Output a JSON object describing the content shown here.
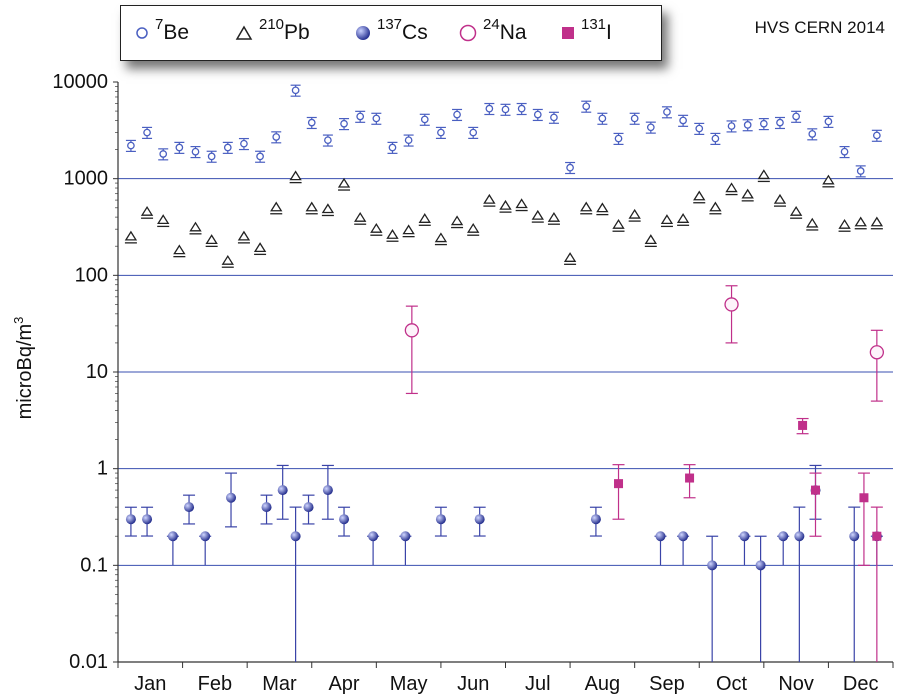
{
  "note": "HVS CERN 2014",
  "colors": {
    "be": "#4a5fc1",
    "pb": "#222222",
    "cs": "#3a44a8",
    "na": "#c0308a",
    "i": "#c0308a",
    "grid": "#3a4fb0"
  },
  "legend": [
    {
      "mass": "7",
      "element": "Be",
      "marker": "circle-open-blue"
    },
    {
      "mass": "210",
      "element": "Pb",
      "marker": "triangle-open"
    },
    {
      "mass": "137",
      "element": "Cs",
      "marker": "sphere-blue"
    },
    {
      "mass": "24",
      "element": "Na",
      "marker": "circle-open-pink"
    },
    {
      "mass": "131",
      "element": "I",
      "marker": "square-pink"
    }
  ],
  "chart_data": {
    "type": "scatter",
    "xlabel": "",
    "ylabel": "microBq/m3",
    "yscale": "log",
    "ylim": [
      0.01,
      10000
    ],
    "yticks": [
      "10000",
      "1000",
      "100",
      "10",
      "1",
      "0.1",
      "0.01"
    ],
    "xlim": [
      0,
      12
    ],
    "categories": [
      "Jan",
      "Feb",
      "Mar",
      "Apr",
      "May",
      "Jun",
      "Jul",
      "Aug",
      "Sep",
      "Oct",
      "Nov",
      "Dec"
    ],
    "grid": "horizontal at decades",
    "series": [
      {
        "name": "7Be",
        "x": [
          0.2,
          0.45,
          0.7,
          0.95,
          1.2,
          1.45,
          1.7,
          1.95,
          2.2,
          2.45,
          2.75,
          3.0,
          3.25,
          3.5,
          3.75,
          4.0,
          4.25,
          4.5,
          4.75,
          5.0,
          5.25,
          5.5,
          5.75,
          6.0,
          6.25,
          6.5,
          6.75,
          7.0,
          7.25,
          7.5,
          7.75,
          8.0,
          8.25,
          8.5,
          8.75,
          9.0,
          9.25,
          9.5,
          9.75,
          10.0,
          10.25,
          10.5,
          10.75,
          11.0,
          11.25,
          11.5,
          11.75
        ],
        "y": [
          2200,
          3000,
          1800,
          2100,
          1900,
          1700,
          2100,
          2300,
          1700,
          2700,
          8200,
          3800,
          2500,
          3700,
          4400,
          4200,
          2100,
          2500,
          4100,
          3000,
          4600,
          3000,
          5300,
          5200,
          5300,
          4600,
          4300,
          1300,
          5600,
          4200,
          2600,
          4200,
          3400,
          4900,
          4000,
          3300,
          2600,
          3500,
          3600,
          3700,
          3800,
          4400,
          2900,
          3900,
          1900,
          1200,
          2800
        ]
      },
      {
        "name": "210Pb",
        "x": [
          0.2,
          0.45,
          0.7,
          0.95,
          1.2,
          1.45,
          1.7,
          1.95,
          2.2,
          2.45,
          2.75,
          3.0,
          3.25,
          3.5,
          3.75,
          4.0,
          4.25,
          4.5,
          4.75,
          5.0,
          5.25,
          5.5,
          5.75,
          6.0,
          6.25,
          6.5,
          6.75,
          7.0,
          7.25,
          7.5,
          7.75,
          8.0,
          8.25,
          8.5,
          8.75,
          9.0,
          9.25,
          9.5,
          9.75,
          10.0,
          10.25,
          10.5,
          10.75,
          11.0,
          11.25,
          11.5,
          11.75
        ],
        "y": [
          250,
          450,
          370,
          180,
          310,
          230,
          140,
          250,
          190,
          500,
          1050,
          500,
          480,
          880,
          390,
          300,
          260,
          290,
          380,
          240,
          360,
          300,
          600,
          520,
          540,
          410,
          390,
          150,
          500,
          490,
          330,
          420,
          230,
          370,
          380,
          650,
          500,
          790,
          680,
          1080,
          600,
          450,
          340,
          950,
          330,
          350,
          350
        ]
      },
      {
        "name": "137Cs",
        "x": [
          0.2,
          0.45,
          0.85,
          1.1,
          1.35,
          1.75,
          2.3,
          2.55,
          2.75,
          2.95,
          3.25,
          3.5,
          3.95,
          4.45,
          5.0,
          5.6,
          7.4,
          8.4,
          8.75,
          9.2,
          9.7,
          9.95,
          10.3,
          10.55,
          10.8,
          11.4,
          11.75
        ],
        "y": [
          0.3,
          0.3,
          0.2,
          0.4,
          0.2,
          0.5,
          0.4,
          0.6,
          0.2,
          0.4,
          0.6,
          0.3,
          0.2,
          0.2,
          0.3,
          0.3,
          0.3,
          0.2,
          0.2,
          0.1,
          0.2,
          0.1,
          0.2,
          0.2,
          0.6,
          0.2,
          0.2
        ]
      },
      {
        "name": "24Na",
        "x": [
          4.55,
          9.5,
          11.75
        ],
        "y": [
          27,
          50,
          16
        ]
      },
      {
        "name": "131I",
        "x": [
          7.75,
          8.85,
          10.6,
          10.8,
          11.55,
          11.75
        ],
        "y": [
          0.7,
          0.8,
          2.8,
          0.6,
          0.5,
          0.2
        ]
      }
    ]
  }
}
